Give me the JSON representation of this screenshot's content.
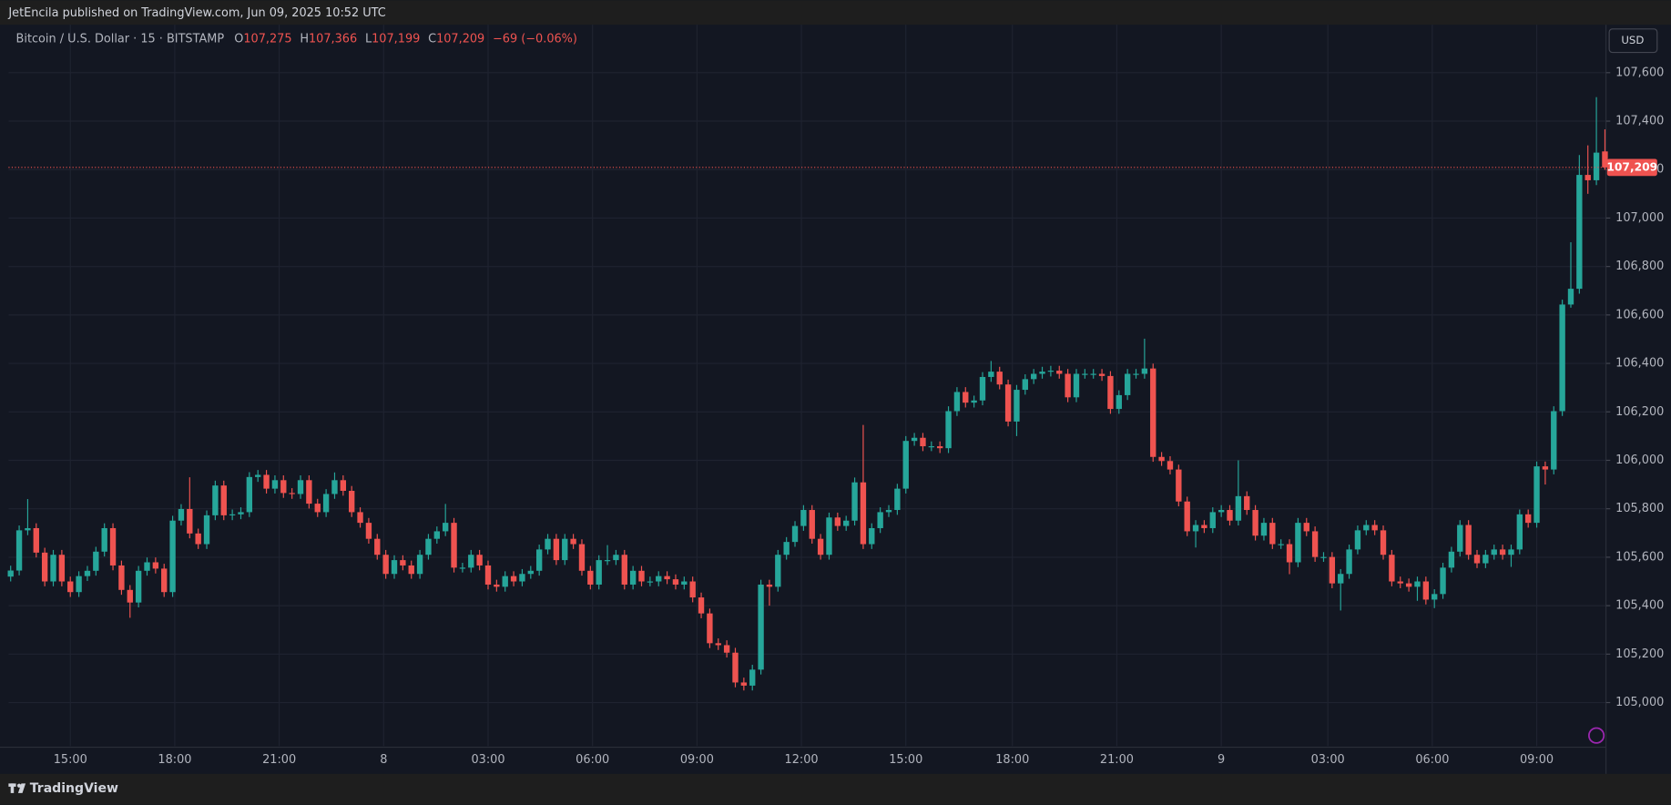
{
  "header": {
    "published": "JetEncila published on TradingView.com, Jun 09, 2025 10:52 UTC",
    "brand": "TradingView",
    "currency": "USD"
  },
  "legend": {
    "symbol": "Bitcoin / U.S. Dollar · 15 · BITSTAMP",
    "o_key": "O",
    "open": "107,275",
    "h_key": "H",
    "high": "107,366",
    "l_key": "L",
    "low": "107,199",
    "c_key": "C",
    "close": "107,209",
    "change": "−69 (−0.06%)"
  },
  "chart_data": {
    "type": "candlestick",
    "up_color": "#26a69a",
    "down_color": "#ef5350",
    "grid": true,
    "last_price": {
      "value": 107209,
      "label": "107,209"
    },
    "xlim": [
      -0.25,
      187.125
    ],
    "xticks": [
      {
        "value": 7,
        "label": "15:00"
      },
      {
        "value": 19.25,
        "label": "18:00"
      },
      {
        "value": 31.5,
        "label": "21:00"
      },
      {
        "value": 43.75,
        "label": "8"
      },
      {
        "value": 56,
        "label": "03:00"
      },
      {
        "value": 68.25,
        "label": "06:00"
      },
      {
        "value": 80.5,
        "label": "09:00"
      },
      {
        "value": 92.75,
        "label": "12:00"
      },
      {
        "value": 105,
        "label": "15:00"
      },
      {
        "value": 117.5,
        "label": "18:00"
      },
      {
        "value": 129.75,
        "label": "21:00"
      },
      {
        "value": 142,
        "label": "9"
      },
      {
        "value": 154.5,
        "label": "03:00"
      },
      {
        "value": 166.75,
        "label": "06:00"
      },
      {
        "value": 179,
        "label": "09:00"
      }
    ],
    "ylim": [
      104820,
      107798
    ],
    "yticks": [
      {
        "value": 105000,
        "label": "105,000"
      },
      {
        "value": 105200,
        "label": "105,200"
      },
      {
        "value": 105400,
        "label": "105,400"
      },
      {
        "value": 105600,
        "label": "105,600"
      },
      {
        "value": 105800,
        "label": "105,800"
      },
      {
        "value": 106000,
        "label": "106,000"
      },
      {
        "value": 106200,
        "label": "106,200"
      },
      {
        "value": 106400,
        "label": "106,400"
      },
      {
        "value": 106600,
        "label": "106,600"
      },
      {
        "value": 106800,
        "label": "106,800"
      },
      {
        "value": 107000,
        "label": "107,000"
      },
      {
        "value": 107200,
        "label": "107,200"
      },
      {
        "value": 107400,
        "label": "107,400"
      },
      {
        "value": 107600,
        "label": "107,600"
      }
    ],
    "ohlc": [
      [
        105520,
        105565,
        105500,
        105545
      ],
      [
        105545,
        105731,
        105525,
        105711
      ],
      [
        105711,
        105840,
        105691,
        105720
      ],
      [
        105720,
        105740,
        105599,
        105619
      ],
      [
        105619,
        105639,
        105480,
        105500
      ],
      [
        105500,
        105630,
        105480,
        105610
      ],
      [
        105610,
        105630,
        105480,
        105500
      ],
      [
        105500,
        105520,
        105436,
        105456
      ],
      [
        105456,
        105542,
        105436,
        105522
      ],
      [
        105522,
        105564,
        105502,
        105544
      ],
      [
        105544,
        105643,
        105524,
        105623
      ],
      [
        105623,
        105740,
        105603,
        105720
      ],
      [
        105720,
        105740,
        105546,
        105566
      ],
      [
        105566,
        105586,
        105445,
        105465
      ],
      [
        105465,
        105485,
        105350,
        105413
      ],
      [
        105413,
        105564,
        105393,
        105544
      ],
      [
        105544,
        105599,
        105524,
        105579
      ],
      [
        105579,
        105599,
        105533,
        105553
      ],
      [
        105553,
        105573,
        105436,
        105456
      ],
      [
        105456,
        105771,
        105436,
        105751
      ],
      [
        105751,
        105819,
        105731,
        105799
      ],
      [
        105799,
        105930,
        105678,
        105698
      ],
      [
        105698,
        105718,
        105634,
        105654
      ],
      [
        105654,
        105793,
        105634,
        105773
      ],
      [
        105773,
        105916,
        105753,
        105896
      ],
      [
        105896,
        105916,
        105753,
        105773
      ],
      [
        105773,
        105797,
        105753,
        105777
      ],
      [
        105777,
        105806,
        105757,
        105786
      ],
      [
        105786,
        105951,
        105766,
        105931
      ],
      [
        105931,
        105960,
        105911,
        105940
      ],
      [
        105940,
        105960,
        105863,
        105883
      ],
      [
        105883,
        105938,
        105863,
        105918
      ],
      [
        105918,
        105938,
        105845,
        105865
      ],
      [
        105865,
        105885,
        105841,
        105861
      ],
      [
        105861,
        105938,
        105841,
        105918
      ],
      [
        105918,
        105938,
        105801,
        105821
      ],
      [
        105821,
        105841,
        105766,
        105786
      ],
      [
        105786,
        105881,
        105766,
        105861
      ],
      [
        105861,
        105950,
        105841,
        105918
      ],
      [
        105918,
        105938,
        105854,
        105874
      ],
      [
        105874,
        105894,
        105766,
        105786
      ],
      [
        105786,
        105806,
        105722,
        105742
      ],
      [
        105742,
        105762,
        105656,
        105676
      ],
      [
        105676,
        105696,
        105590,
        105610
      ],
      [
        105610,
        105630,
        105511,
        105531
      ],
      [
        105531,
        105608,
        105511,
        105588
      ],
      [
        105588,
        105608,
        105546,
        105566
      ],
      [
        105566,
        105586,
        105511,
        105531
      ],
      [
        105531,
        105630,
        105511,
        105610
      ],
      [
        105610,
        105696,
        105590,
        105676
      ],
      [
        105676,
        105727,
        105656,
        105707
      ],
      [
        105707,
        105820,
        105687,
        105742
      ],
      [
        105742,
        105762,
        105537,
        105557
      ],
      [
        105557,
        105577,
        105537,
        105557
      ],
      [
        105557,
        105630,
        105537,
        105610
      ],
      [
        105610,
        105630,
        105546,
        105566
      ],
      [
        105566,
        105586,
        105467,
        105487
      ],
      [
        105487,
        105507,
        105458,
        105478
      ],
      [
        105478,
        105542,
        105458,
        105522
      ],
      [
        105522,
        105542,
        105480,
        105500
      ],
      [
        105500,
        105551,
        105480,
        105531
      ],
      [
        105531,
        105564,
        105511,
        105544
      ],
      [
        105544,
        105652,
        105524,
        105632
      ],
      [
        105632,
        105696,
        105612,
        105676
      ],
      [
        105676,
        105696,
        105568,
        105588
      ],
      [
        105588,
        105696,
        105568,
        105676
      ],
      [
        105676,
        105696,
        105634,
        105654
      ],
      [
        105654,
        105674,
        105524,
        105544
      ],
      [
        105544,
        105564,
        105467,
        105487
      ],
      [
        105487,
        105608,
        105467,
        105588
      ],
      [
        105588,
        105650,
        105568,
        105588
      ],
      [
        105588,
        105630,
        105568,
        105610
      ],
      [
        105610,
        105630,
        105467,
        105487
      ],
      [
        105487,
        105564,
        105467,
        105544
      ],
      [
        105544,
        105564,
        105480,
        105500
      ],
      [
        105500,
        105520,
        105480,
        105500
      ],
      [
        105500,
        105542,
        105480,
        105522
      ],
      [
        105522,
        105542,
        105489,
        105509
      ],
      [
        105509,
        105529,
        105467,
        105487
      ],
      [
        105487,
        105520,
        105467,
        105500
      ],
      [
        105500,
        105520,
        105414,
        105434
      ],
      [
        105434,
        105454,
        105348,
        105368
      ],
      [
        105368,
        105388,
        105225,
        105245
      ],
      [
        105245,
        105265,
        105217,
        105237
      ],
      [
        105237,
        105257,
        105186,
        105206
      ],
      [
        105206,
        105226,
        105063,
        105083
      ],
      [
        105083,
        105103,
        105050,
        105070
      ],
      [
        105070,
        105156,
        105050,
        105136
      ],
      [
        105136,
        105507,
        105116,
        105487
      ],
      [
        105487,
        105507,
        105400,
        105478
      ],
      [
        105478,
        105630,
        105458,
        105610
      ],
      [
        105610,
        105683,
        105590,
        105663
      ],
      [
        105663,
        105749,
        105643,
        105729
      ],
      [
        105729,
        105815,
        105709,
        105795
      ],
      [
        105795,
        105815,
        105656,
        105676
      ],
      [
        105676,
        105696,
        105590,
        105610
      ],
      [
        105610,
        105784,
        105590,
        105764
      ],
      [
        105764,
        105784,
        105709,
        105729
      ],
      [
        105729,
        105771,
        105709,
        105751
      ],
      [
        105751,
        105929,
        105731,
        105909
      ],
      [
        105909,
        106146,
        105634,
        105654
      ],
      [
        105654,
        105740,
        105634,
        105720
      ],
      [
        105720,
        105806,
        105700,
        105786
      ],
      [
        105786,
        105815,
        105766,
        105795
      ],
      [
        105795,
        105903,
        105775,
        105883
      ],
      [
        105883,
        106100,
        105863,
        106080
      ],
      [
        106080,
        106113,
        106060,
        106093
      ],
      [
        106093,
        106113,
        106038,
        106058
      ],
      [
        106058,
        106078,
        106038,
        106058
      ],
      [
        106058,
        106078,
        106030,
        106050
      ],
      [
        106050,
        106223,
        106030,
        106203
      ],
      [
        106203,
        106302,
        106183,
        106282
      ],
      [
        106282,
        106302,
        106218,
        106238
      ],
      [
        106238,
        106267,
        106218,
        106247
      ],
      [
        106247,
        106364,
        106227,
        106344
      ],
      [
        106344,
        106410,
        106324,
        106366
      ],
      [
        106366,
        106386,
        106293,
        106313
      ],
      [
        106313,
        106333,
        106140,
        106160
      ],
      [
        106160,
        106311,
        106100,
        106291
      ],
      [
        106291,
        106355,
        106271,
        106335
      ],
      [
        106335,
        106377,
        106315,
        106357
      ],
      [
        106357,
        106386,
        106337,
        106366
      ],
      [
        106366,
        106390,
        106346,
        106370
      ],
      [
        106370,
        106390,
        106337,
        106357
      ],
      [
        106357,
        106377,
        106240,
        106260
      ],
      [
        106260,
        106377,
        106240,
        106357
      ],
      [
        106357,
        106377,
        106337,
        106357
      ],
      [
        106357,
        106377,
        106337,
        106357
      ],
      [
        106357,
        106377,
        106328,
        106348
      ],
      [
        106348,
        106368,
        106192,
        106212
      ],
      [
        106212,
        106289,
        106192,
        106269
      ],
      [
        106269,
        106377,
        106249,
        106357
      ],
      [
        106357,
        106377,
        106337,
        106357
      ],
      [
        106357,
        106502,
        106337,
        106379
      ],
      [
        106379,
        106399,
        105994,
        106014
      ],
      [
        106014,
        106034,
        105977,
        105997
      ],
      [
        105997,
        106017,
        105942,
        105962
      ],
      [
        105962,
        105982,
        105810,
        105830
      ],
      [
        105830,
        105850,
        105687,
        105707
      ],
      [
        105707,
        105753,
        105640,
        105733
      ],
      [
        105733,
        105753,
        105700,
        105720
      ],
      [
        105720,
        105806,
        105700,
        105786
      ],
      [
        105786,
        105815,
        105766,
        105795
      ],
      [
        105795,
        105815,
        105731,
        105751
      ],
      [
        105751,
        106000,
        105731,
        105852
      ],
      [
        105852,
        105872,
        105775,
        105795
      ],
      [
        105795,
        105815,
        105669,
        105689
      ],
      [
        105689,
        105762,
        105669,
        105742
      ],
      [
        105742,
        105762,
        105634,
        105654
      ],
      [
        105654,
        105674,
        105634,
        105654
      ],
      [
        105654,
        105674,
        105530,
        105579
      ],
      [
        105579,
        105762,
        105559,
        105742
      ],
      [
        105742,
        105762,
        105687,
        105707
      ],
      [
        105707,
        105727,
        105581,
        105601
      ],
      [
        105601,
        105621,
        105581,
        105601
      ],
      [
        105601,
        105621,
        105472,
        105492
      ],
      [
        105492,
        105551,
        105380,
        105531
      ],
      [
        105531,
        105652,
        105511,
        105632
      ],
      [
        105632,
        105731,
        105612,
        105711
      ],
      [
        105711,
        105753,
        105691,
        105733
      ],
      [
        105733,
        105753,
        105691,
        105711
      ],
      [
        105711,
        105731,
        105590,
        105610
      ],
      [
        105610,
        105630,
        105480,
        105500
      ],
      [
        105500,
        105520,
        105472,
        105492
      ],
      [
        105492,
        105512,
        105458,
        105478
      ],
      [
        105478,
        105520,
        105420,
        105500
      ],
      [
        105500,
        105520,
        105405,
        105425
      ],
      [
        105425,
        105468,
        105390,
        105448
      ],
      [
        105448,
        105577,
        105428,
        105557
      ],
      [
        105557,
        105643,
        105537,
        105623
      ],
      [
        105623,
        105753,
        105603,
        105733
      ],
      [
        105733,
        105753,
        105590,
        105610
      ],
      [
        105610,
        105630,
        105555,
        105575
      ],
      [
        105575,
        105630,
        105555,
        105610
      ],
      [
        105610,
        105652,
        105590,
        105632
      ],
      [
        105632,
        105652,
        105590,
        105610
      ],
      [
        105610,
        105652,
        105560,
        105632
      ],
      [
        105632,
        105797,
        105612,
        105777
      ],
      [
        105777,
        105797,
        105722,
        105742
      ],
      [
        105742,
        105995,
        105722,
        105975
      ],
      [
        105975,
        105995,
        105900,
        105962
      ],
      [
        105962,
        106223,
        105942,
        106203
      ],
      [
        106203,
        106663,
        106183,
        106643
      ],
      [
        106643,
        106900,
        106630,
        106708
      ],
      [
        106708,
        107260,
        106688,
        107178
      ],
      [
        107178,
        107300,
        107100,
        107156
      ],
      [
        107156,
        107499,
        107136,
        107270
      ],
      [
        107275,
        107366,
        107199,
        107209
      ]
    ]
  }
}
